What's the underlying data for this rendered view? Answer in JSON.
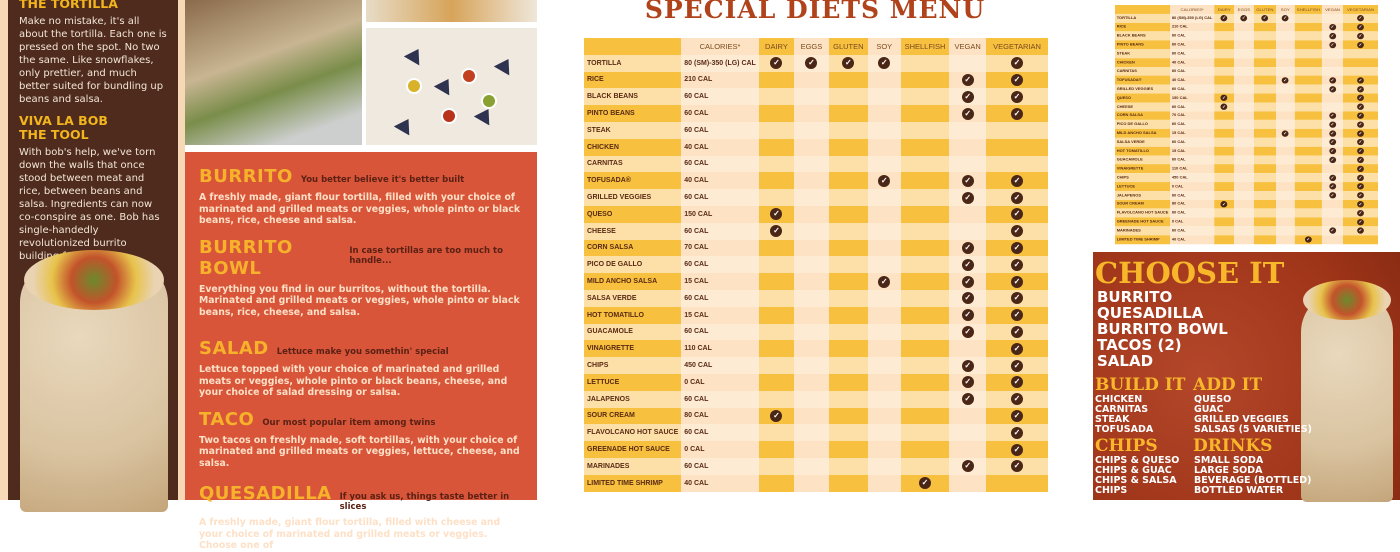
{
  "left_panel": {
    "sections": [
      {
        "heading": "THE TORTILLA",
        "body": "Make no mistake, it's all about the tortilla. Each one is pressed on the spot. No two the same. Like snowflakes, only prettier, and much better suited for bundling up beans and salsa."
      },
      {
        "heading": "VIVA LA BOB THE TOOL",
        "body": "With bob's help, we've torn down the walls that once stood between meat and rice, between beans and salsa. Ingredients can now co-conspire as one. Bob has single-handedly revolutionized burrito building forever."
      }
    ]
  },
  "menu_panel": {
    "items": [
      {
        "title": "BURRITO",
        "tagline": "You better believe it's better built",
        "desc": "A freshly made, giant flour tortilla, filled with your choice of marinated and grilled meats or veggies, whole pinto or black beans, rice, cheese and salsa."
      },
      {
        "title": "BURRITO BOWL",
        "tagline": "In case tortillas are too much to handle...",
        "desc": "Everything you find in our burritos, without the tortilla. Marinated and grilled meats or veggies, whole pinto or black beans, rice, cheese, and salsa."
      },
      {
        "title": "SALAD",
        "tagline": "Lettuce make you somethin' special",
        "desc": "Lettuce topped with your choice of marinated and grilled meats or veggies, whole pinto or black beans, cheese, and your choice of salad dressing or salsa."
      },
      {
        "title": "TACO",
        "tagline": "Our most popular item among twins",
        "desc": "Two tacos on freshly made, soft tortillas, with your choice of marinated and grilled meats or veggies, lettuce, cheese, and salsa."
      },
      {
        "title": "QUESADILLA",
        "tagline": "If you ask us, things taste better in slices",
        "desc": "A freshly made, giant flour tortilla, filled with cheese and your choice of marinated and grilled meats or veggies. Choose one of"
      }
    ]
  },
  "diets": {
    "title": "SPECIAL DIETS MENU",
    "columns": [
      "",
      "CALORIES*",
      "DAIRY",
      "EGGS",
      "GLUTEN",
      "SOY",
      "SHELLFISH",
      "VEGAN",
      "VEGETARIAN"
    ],
    "colors": {
      "dark": "#f7c03f",
      "light": "#fde3c3",
      "pale_dark": "#fde0a8",
      "pale_light": "#fdebd3",
      "check": "#4a2617"
    },
    "rows": [
      {
        "name": "TORTILLA",
        "calories": "80 (SM)-350 (LG) CAL",
        "checks": [
          1,
          1,
          1,
          1,
          0,
          0,
          1
        ]
      },
      {
        "name": "RICE",
        "calories": "210 CAL",
        "checks": [
          0,
          0,
          0,
          0,
          0,
          1,
          1
        ]
      },
      {
        "name": "BLACK BEANS",
        "calories": "60 CAL",
        "checks": [
          0,
          0,
          0,
          0,
          0,
          1,
          1
        ]
      },
      {
        "name": "PINTO BEANS",
        "calories": "60 CAL",
        "checks": [
          0,
          0,
          0,
          0,
          0,
          1,
          1
        ]
      },
      {
        "name": "STEAK",
        "calories": "60 CAL",
        "checks": [
          0,
          0,
          0,
          0,
          0,
          0,
          0
        ]
      },
      {
        "name": "CHICKEN",
        "calories": "40 CAL",
        "checks": [
          0,
          0,
          0,
          0,
          0,
          0,
          0
        ]
      },
      {
        "name": "CARNITAS",
        "calories": "60 CAL",
        "checks": [
          0,
          0,
          0,
          0,
          0,
          0,
          0
        ]
      },
      {
        "name": "TOFUSADA®",
        "calories": "40 CAL",
        "checks": [
          0,
          0,
          0,
          1,
          0,
          1,
          1
        ]
      },
      {
        "name": "GRILLED VEGGIES",
        "calories": "60 CAL",
        "checks": [
          0,
          0,
          0,
          0,
          0,
          1,
          1
        ]
      },
      {
        "name": "QUESO",
        "calories": "150 CAL",
        "checks": [
          1,
          0,
          0,
          0,
          0,
          0,
          1
        ]
      },
      {
        "name": "CHEESE",
        "calories": "60 CAL",
        "checks": [
          1,
          0,
          0,
          0,
          0,
          0,
          1
        ]
      },
      {
        "name": "CORN SALSA",
        "calories": "70 CAL",
        "checks": [
          0,
          0,
          0,
          0,
          0,
          1,
          1
        ]
      },
      {
        "name": "PICO DE GALLO",
        "calories": "60 CAL",
        "checks": [
          0,
          0,
          0,
          0,
          0,
          1,
          1
        ]
      },
      {
        "name": "MILD ANCHO SALSA",
        "calories": "15 CAL",
        "checks": [
          0,
          0,
          0,
          1,
          0,
          1,
          1
        ]
      },
      {
        "name": "SALSA VERDE",
        "calories": "60 CAL",
        "checks": [
          0,
          0,
          0,
          0,
          0,
          1,
          1
        ]
      },
      {
        "name": "HOT TOMATILLO",
        "calories": "15 CAL",
        "checks": [
          0,
          0,
          0,
          0,
          0,
          1,
          1
        ]
      },
      {
        "name": "GUACAMOLE",
        "calories": "60 CAL",
        "checks": [
          0,
          0,
          0,
          0,
          0,
          1,
          1
        ]
      },
      {
        "name": "VINAIGRETTE",
        "calories": "110 CAL",
        "checks": [
          0,
          0,
          0,
          0,
          0,
          0,
          1
        ]
      },
      {
        "name": "CHIPS",
        "calories": "450 CAL",
        "checks": [
          0,
          0,
          0,
          0,
          0,
          1,
          1
        ]
      },
      {
        "name": "LETTUCE",
        "calories": "0 CAL",
        "checks": [
          0,
          0,
          0,
          0,
          0,
          1,
          1
        ]
      },
      {
        "name": "JALAPENOS",
        "calories": "60 CAL",
        "checks": [
          0,
          0,
          0,
          0,
          0,
          1,
          1
        ]
      },
      {
        "name": "SOUR CREAM",
        "calories": "80 CAL",
        "checks": [
          1,
          0,
          0,
          0,
          0,
          0,
          1
        ]
      },
      {
        "name": "FLAVOLCANO HOT SAUCE",
        "calories": "60 CAL",
        "checks": [
          0,
          0,
          0,
          0,
          0,
          0,
          1
        ]
      },
      {
        "name": "GREENADE HOT SAUCE",
        "calories": "0 CAL",
        "checks": [
          0,
          0,
          0,
          0,
          0,
          0,
          1
        ]
      },
      {
        "name": "MARINADES",
        "calories": "60 CAL",
        "checks": [
          0,
          0,
          0,
          0,
          0,
          1,
          1
        ]
      },
      {
        "name": "LIMITED TIME SHRIMP",
        "calories": "40 CAL",
        "checks": [
          0,
          0,
          0,
          0,
          1,
          0,
          0
        ]
      }
    ]
  },
  "choose_panel": {
    "choose_heading": "CHOOSE IT",
    "choose_items": [
      "BURRITO",
      "QUESADILLA",
      "BURRITO BOWL",
      "TACOS (2)",
      "SALAD"
    ],
    "build_heading": "BUILD IT",
    "build_items": [
      "CHICKEN",
      "CARNITAS",
      "STEAK",
      "TOFUSADA"
    ],
    "add_heading": "ADD IT",
    "add_items": [
      "QUESO",
      "GUAC",
      "GRILLED VEGGIES",
      "SALSAS (5 VARIETIES)"
    ],
    "chips_heading": "CHIPS",
    "chips_items": [
      "CHIPS & QUESO",
      "CHIPS & GUAC",
      "CHIPS & SALSA",
      "CHIPS"
    ],
    "drinks_heading": "DRINKS",
    "drinks_items": [
      "SMALL SODA",
      "LARGE SODA",
      "BEVERAGE (BOTTLED)",
      "BOTTLED WATER"
    ]
  }
}
